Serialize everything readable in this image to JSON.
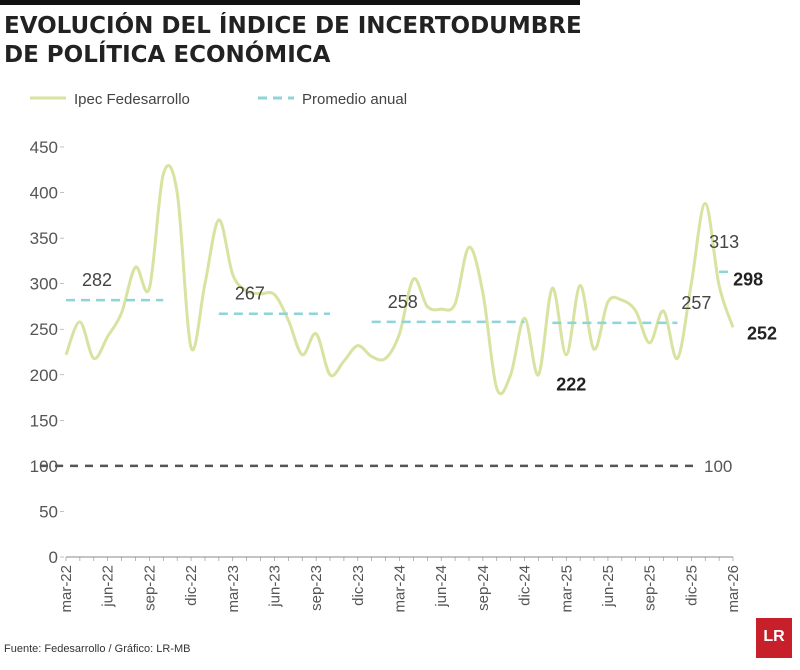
{
  "chart_data": {
    "type": "line",
    "title": "EVOLUCIÓN DEL ÍNDICE DE INCERTODUMBRE DE POLÍTICA ECONÓMICA",
    "categories": [
      "mar-22",
      null,
      null,
      "jun-22",
      null,
      null,
      "sep-22",
      null,
      null,
      "dic-22",
      null,
      null,
      "mar-23",
      null,
      null,
      "jun-23",
      null,
      null,
      "sep-23",
      null,
      null,
      "dic-23",
      null,
      null,
      "mar-24",
      null,
      null,
      "jun-24",
      null,
      null,
      "sep-24",
      null,
      null,
      "dic-24",
      null,
      null,
      "mar-25",
      null,
      null,
      "jun-25",
      null,
      null,
      "sep-25",
      null,
      null,
      "dic-25",
      null,
      null,
      "mar-26"
    ],
    "series": [
      {
        "name": "Ipec Fedesarrollo",
        "color": "#d7e3a0",
        "values": [
          222,
          258,
          218,
          242,
          268,
          318,
          295,
          420,
          400,
          230,
          300,
          370,
          310,
          292,
          289,
          288,
          260,
          222,
          245,
          200,
          215,
          232,
          220,
          218,
          245,
          305,
          275,
          272,
          278,
          340,
          290,
          185,
          200,
          262,
          200,
          295,
          222,
          298,
          228,
          280,
          282,
          270,
          235,
          270,
          218,
          300,
          388,
          298,
          252
        ],
        "value_labels": [
          null,
          null,
          null,
          null,
          null,
          null,
          null,
          null,
          null,
          null,
          null,
          null,
          null,
          null,
          null,
          null,
          null,
          null,
          null,
          null,
          null,
          null,
          null,
          null,
          null,
          null,
          null,
          null,
          null,
          null,
          null,
          null,
          null,
          null,
          null,
          null,
          "222",
          null,
          null,
          null,
          null,
          null,
          null,
          null,
          null,
          null,
          null,
          "298",
          "252"
        ]
      },
      {
        "name": "Promedio anual",
        "color": "#8ed4d8",
        "dashed": true,
        "values": [
          282,
          282,
          282,
          282,
          282,
          282,
          282,
          282,
          null,
          null,
          null,
          267,
          267,
          267,
          267,
          267,
          267,
          267,
          267,
          267,
          null,
          null,
          258,
          258,
          258,
          258,
          258,
          258,
          258,
          258,
          258,
          258,
          258,
          258,
          null,
          257,
          257,
          257,
          257,
          257,
          257,
          257,
          257,
          257,
          257,
          null,
          null,
          313,
          313
        ]
      }
    ],
    "reference_line": 100,
    "ylim": [
      0,
      450
    ],
    "yticks": [
      0,
      50,
      100,
      150,
      200,
      250,
      300,
      350,
      400,
      450
    ],
    "source": "Fuente: Fedesarrollo / Gráfico: LR-MB",
    "logo": "LR"
  }
}
